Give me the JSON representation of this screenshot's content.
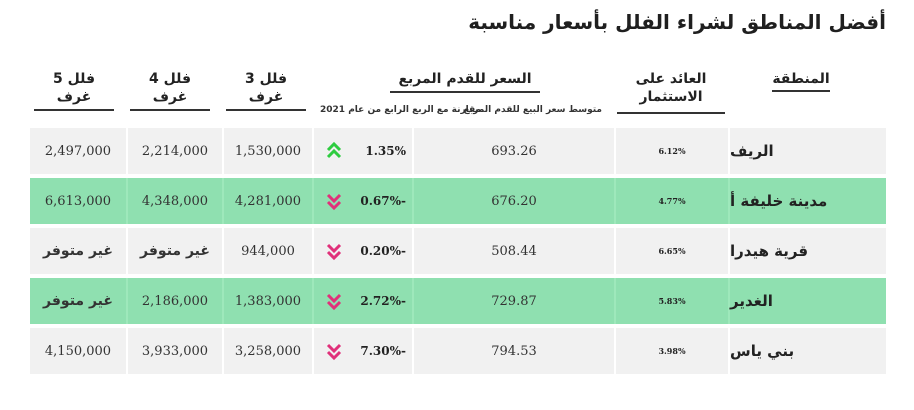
{
  "title": "أفضل المناطق لشراء الفلل بأسعار مناسبة",
  "headers": {
    "region": "المنطقة",
    "roi": "العائد على الاستثمار",
    "price_sqft": "السعر للقدم المربع",
    "avg_price_sub": "متوسط سعر البيع للقدم المربع",
    "change_sub": "مقارنة مع الربع الرابع من عام 2021",
    "villa3": "فلل 3 غرف",
    "villa4": "فلل 4 غرف",
    "villa5": "فلل 5 غرف"
  },
  "colors": {
    "up": "#2ecc40",
    "down": "#e0307a",
    "row_green": "#9ee8bb"
  },
  "rows": [
    {
      "region": "الريف",
      "roi": "6.12%",
      "avg_price": "693.26",
      "change": "1.35%",
      "direction": "up",
      "villa3": "1,530,000",
      "villa4": "2,214,000",
      "villa5": "2,497,000"
    },
    {
      "region": "مدينة خليفة أ",
      "roi": "4.77%",
      "avg_price": "676.20",
      "change": "0.67%-",
      "direction": "down",
      "villa3": "4,281,000",
      "villa4": "4,348,000",
      "villa5": "6,613,000"
    },
    {
      "region": "قرية هيدرا",
      "roi": "6.65%",
      "avg_price": "508.44",
      "change": "0.20%-",
      "direction": "down",
      "villa3": "944,000",
      "villa4": "غير متوفر",
      "villa5": "غير متوفر"
    },
    {
      "region": "الغدير",
      "roi": "5.83%",
      "avg_price": "729.87",
      "change": "2.72%-",
      "direction": "down",
      "villa3": "1,383,000",
      "villa4": "2,186,000",
      "villa5": "غير متوفر"
    },
    {
      "region": "بني ياس",
      "roi": "3.98%",
      "avg_price": "794.53",
      "change": "7.30%-",
      "direction": "down",
      "villa3": "3,258,000",
      "villa4": "3,933,000",
      "villa5": "4,150,000"
    }
  ]
}
